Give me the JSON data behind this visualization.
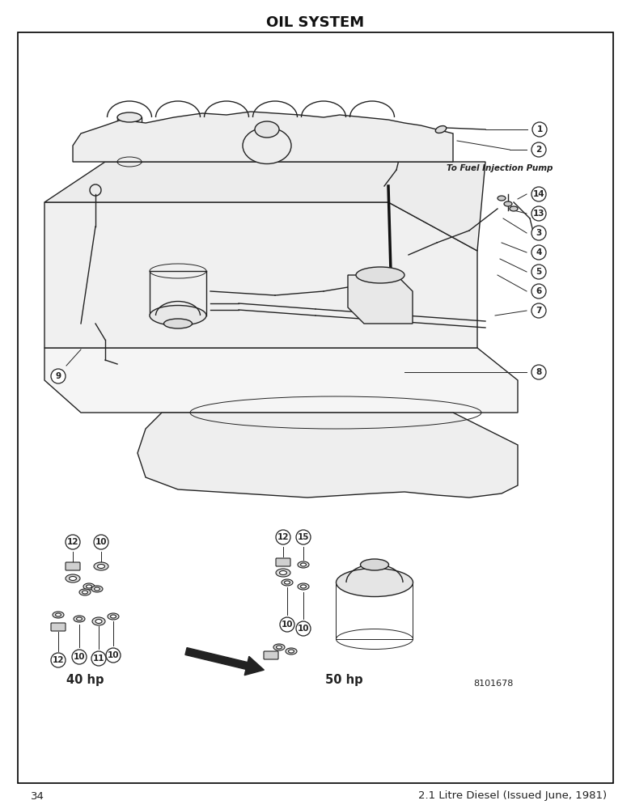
{
  "title": "OIL SYSTEM",
  "page_number": "34",
  "footer_text": "2.1 Litre Diesel (Issued June, 1981)",
  "diagram_code": "8101678",
  "label_40hp": "40 hp",
  "label_50hp": "50 hp",
  "fuel_injection_label": "To Fuel Injection Pump",
  "bg_color": "#ffffff",
  "lc": "#222222",
  "border_color": "#000000",
  "fig_w": 7.8,
  "fig_h": 10.0,
  "dpi": 100
}
